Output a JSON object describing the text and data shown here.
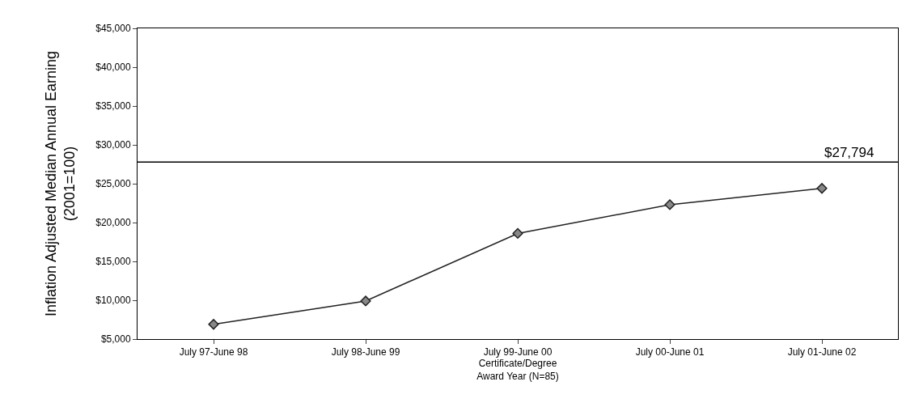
{
  "chart_data": {
    "type": "line",
    "xlabel": "Certificate/Degree\nAward Year (N=85)",
    "ylabel": "Inflation Adjusted Median Annual Earning\n(2001=100)",
    "categories": [
      "July 97-June 98",
      "July 98-June 99",
      "July 99-June 00",
      "July 00-June 01",
      "July 01-June 02"
    ],
    "series": [
      {
        "color": "#222222",
        "values": [
          6900,
          9900,
          18600,
          22300,
          24400
        ]
      }
    ],
    "ylim": [
      5000,
      45000
    ],
    "yticks": [
      {
        "value": 5000,
        "label": "$5,000"
      },
      {
        "value": 10000,
        "label": "$10,000"
      },
      {
        "value": 15000,
        "label": "$15,000"
      },
      {
        "value": 20000,
        "label": "$20,000"
      },
      {
        "value": 25000,
        "label": "$25,000"
      },
      {
        "value": 30000,
        "label": "$30,000"
      },
      {
        "value": 35000,
        "label": "$35,000"
      },
      {
        "value": 40000,
        "label": "$40,000"
      },
      {
        "value": 45000,
        "label": "$45,000"
      }
    ],
    "ref_lines": [
      {
        "axis": "y",
        "value": 27794,
        "label": "$27,794",
        "color": "#000000"
      }
    ],
    "legend": false,
    "marker": "diamond",
    "line_style": "solid"
  }
}
